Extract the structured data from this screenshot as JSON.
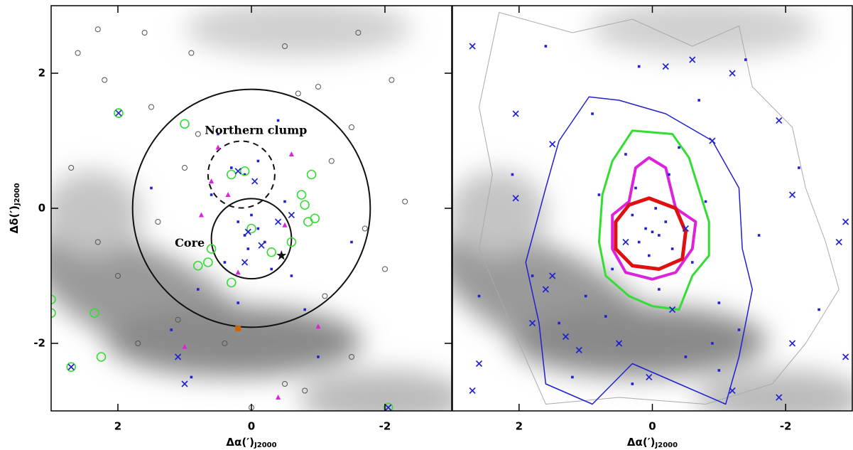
{
  "chart_data": [
    {
      "type": "scatter",
      "xlim": [
        3,
        -3
      ],
      "ylim": [
        -3,
        3
      ],
      "xticks": [
        2,
        0,
        -2
      ],
      "yticks": [
        -2,
        0,
        2
      ],
      "xlabel": "Δα(′)",
      "xlabel_sub": "J2000",
      "ylabel": "Δδ(′)",
      "ylabel_sub": "J2000",
      "annotations": [
        "Northern clump",
        "Core"
      ],
      "circles": [
        {
          "cx": 0,
          "cy": 0,
          "r": 1.78,
          "dashed": false,
          "color": "#111111"
        },
        {
          "cx": 0.15,
          "cy": 0.5,
          "r": 0.5,
          "dashed": true,
          "color": "#111111"
        },
        {
          "cx": 0.0,
          "cy": -0.45,
          "r": 0.6,
          "dashed": false,
          "color": "#111111"
        }
      ],
      "series": [
        {
          "marker": "circle",
          "color": "#555555",
          "x": [
            2.6,
            1.6,
            2.2,
            1.5,
            0.9,
            -0.5,
            -1.6,
            -2.1,
            -1.5,
            -2.3,
            -1.7,
            -2.0,
            2.7,
            2.3,
            1.4,
            1.0,
            -1.1,
            -1.5,
            -0.5,
            0.4,
            1.1,
            2.0,
            0.8,
            -0.7,
            -0.8,
            1.7,
            2.3,
            0.0,
            -1.2,
            -1.0
          ],
          "y": [
            2.3,
            2.6,
            1.9,
            1.5,
            2.3,
            2.4,
            2.6,
            1.9,
            1.2,
            0.1,
            -0.3,
            -0.9,
            0.6,
            -0.5,
            -0.2,
            0.6,
            -1.3,
            -2.2,
            -2.6,
            -2.0,
            -1.65,
            -1.0,
            1.1,
            1.7,
            -2.7,
            -2.0,
            2.65,
            -2.95,
            0.7,
            1.8
          ]
        },
        {
          "marker": "dot",
          "color": "#2020d0",
          "x": [
            0.1,
            -0.1,
            0.05,
            0.2,
            -0.2,
            0,
            0.3,
            0.1,
            -0.1,
            0.4,
            -0.3,
            0.6,
            -0.5,
            0.8,
            -0.8,
            1.2,
            -1.5,
            0.5,
            -0.4,
            1.5,
            0.2,
            -1.0,
            0.9,
            -0.6
          ],
          "y": [
            -0.4,
            -0.3,
            -0.6,
            -0.2,
            -0.5,
            -0.1,
            0.6,
            0.5,
            0.7,
            -0.8,
            -0.9,
            0.2,
            0.1,
            -1.2,
            -1.5,
            -1.8,
            -0.5,
            1.1,
            1.3,
            0.3,
            -1.4,
            -2.2,
            -2.5,
            -1.0
          ]
        },
        {
          "marker": "circle-big",
          "color": "#33dd33",
          "x": [
            1.99,
            1.0,
            3.0,
            3.0,
            2.35,
            2.25,
            2.7,
            -2.05,
            -0.75,
            -0.8,
            -0.85,
            0.3,
            0.1,
            -0.6,
            0.6,
            -0.3,
            0.65,
            -0.9,
            0.3,
            -0.95,
            0.8,
            0.0
          ],
          "y": [
            1.41,
            1.25,
            -1.35,
            -1.55,
            -1.55,
            -2.2,
            -2.35,
            -2.95,
            0.2,
            0.05,
            -0.2,
            0.5,
            0.55,
            -0.5,
            -0.6,
            -0.65,
            -0.8,
            0.5,
            -1.1,
            -0.15,
            -0.85,
            -0.3
          ]
        },
        {
          "marker": "cross",
          "color": "#2020d0",
          "x": [
            0.05,
            -0.15,
            0.2,
            -0.05,
            -0.4,
            0.1,
            1.99,
            2.7,
            1.0,
            1.1,
            -0.6,
            -2.05
          ],
          "y": [
            -0.35,
            -0.55,
            0.55,
            0.4,
            -0.2,
            -0.8,
            1.41,
            -2.35,
            -2.6,
            -2.2,
            -0.1,
            -2.95
          ]
        },
        {
          "marker": "triangle",
          "color": "#dd22dd",
          "x": [
            0.35,
            -0.6,
            0.5,
            0.2,
            -0.4,
            1.0,
            -0.5,
            0.75,
            0.6,
            -1.0
          ],
          "y": [
            0.2,
            0.8,
            0.9,
            -0.95,
            -2.8,
            -2.05,
            -0.25,
            -0.1,
            0.4,
            -1.75
          ]
        },
        {
          "marker": "square",
          "color": "#cc6600",
          "x": [
            0.2
          ],
          "y": [
            -1.78
          ]
        },
        {
          "marker": "star",
          "color": "#111111",
          "x": [
            -0.45
          ],
          "y": [
            -0.7
          ]
        }
      ]
    },
    {
      "type": "contour",
      "xlim": [
        3,
        -3
      ],
      "ylim": [
        -3,
        3
      ],
      "xticks": [
        2,
        0,
        -2
      ],
      "xlabel": "Δα(′)",
      "xlabel_sub": "J2000",
      "contours": [
        {
          "color": "#aaaaaa",
          "width": 1,
          "x": [
            2.3,
            1.2,
            0.3,
            -0.6,
            -1.3,
            -1.5,
            -2.1,
            -2.3,
            -2.6,
            -2.8,
            -2.3,
            -1.8,
            -0.8,
            0.5,
            1.6,
            2.0,
            2.6,
            2.4,
            2.6
          ],
          "y": [
            2.9,
            2.6,
            2.8,
            2.4,
            2.7,
            1.8,
            1.2,
            0.3,
            -0.5,
            -1.2,
            -2.0,
            -2.6,
            -2.9,
            -2.8,
            -2.9,
            -2.0,
            -0.6,
            0.5,
            1.5
          ]
        },
        {
          "color": "#2020d0",
          "width": 1.5,
          "x": [
            0.95,
            0.5,
            -0.2,
            -0.9,
            -1.3,
            -1.35,
            -1.5,
            -1.3,
            -1.1,
            -0.4,
            0.3,
            0.9,
            1.6,
            1.7,
            1.9,
            1.6,
            1.4
          ],
          "y": [
            1.65,
            1.6,
            1.4,
            1.0,
            0.3,
            -0.6,
            -1.2,
            -2.2,
            -2.9,
            -2.6,
            -2.3,
            -2.9,
            -2.6,
            -1.7,
            -0.8,
            0.3,
            1.0
          ]
        },
        {
          "color": "#33dd33",
          "width": 3,
          "x": [
            0.3,
            -0.3,
            -0.55,
            -0.85,
            -0.85,
            -0.6,
            -0.4,
            0.0,
            0.35,
            0.7,
            0.8,
            0.75,
            0.6
          ],
          "y": [
            1.15,
            1.1,
            0.75,
            -0.2,
            -0.7,
            -1.0,
            -1.5,
            -1.45,
            -1.3,
            -1.0,
            -0.5,
            0.2,
            0.7
          ]
        },
        {
          "color": "#dd22dd",
          "width": 4,
          "x": [
            0.05,
            -0.2,
            -0.35,
            -0.65,
            -0.6,
            -0.35,
            0.0,
            0.4,
            0.6,
            0.6,
            0.35,
            0.25
          ],
          "y": [
            0.75,
            0.6,
            0.0,
            -0.2,
            -0.6,
            -0.95,
            -1.05,
            -0.95,
            -0.6,
            -0.1,
            0.1,
            0.6
          ]
        },
        {
          "color": "#e01010",
          "width": 5,
          "x": [
            0.05,
            -0.35,
            -0.5,
            -0.45,
            -0.1,
            0.3,
            0.55,
            0.55,
            0.35
          ],
          "y": [
            0.15,
            0.0,
            -0.35,
            -0.75,
            -0.9,
            -0.85,
            -0.6,
            -0.2,
            0.05
          ]
        }
      ],
      "series": [
        {
          "marker": "dot",
          "color": "#2020d0",
          "x": [
            0,
            0.1,
            -0.1,
            0.2,
            -0.2,
            0.3,
            -0.3,
            0.05,
            -0.05,
            0.25,
            -0.25,
            0.4,
            -0.4,
            0.6,
            -0.6,
            0.8,
            -0.8,
            1.0,
            -1.0,
            1.4,
            -1.3,
            0.5,
            -0.5,
            1.8,
            -1.6,
            2.1,
            -2.2,
            0.9,
            -0.7,
            0.2,
            1.6,
            -1.4,
            2.6,
            -2.5,
            0.3,
            -1.0,
            1.2,
            -0.1,
            0.7,
            -0.9
          ],
          "y": [
            -0.35,
            -0.3,
            -0.4,
            -0.5,
            -0.2,
            -0.1,
            -0.6,
            -0.7,
            0.0,
            0.3,
            0.5,
            0.8,
            0.9,
            -0.9,
            -0.8,
            0.2,
            0.1,
            -1.3,
            -1.4,
            -1.7,
            -1.8,
            -2.0,
            -2.2,
            -1.0,
            -0.4,
            0.5,
            0.6,
            1.4,
            1.6,
            2.1,
            2.4,
            2.2,
            -1.3,
            -1.5,
            -2.6,
            -2.4,
            -2.5,
            -1.2,
            -1.6,
            -2.0
          ]
        },
        {
          "marker": "cross",
          "color": "#2020d0",
          "x": [
            2.7,
            1.5,
            2.05,
            2.05,
            1.5,
            1.6,
            1.3,
            1.1,
            0.5,
            -0.2,
            -0.6,
            -1.2,
            -0.9,
            -1.9,
            -2.1,
            -2.9,
            -2.8,
            -2.1,
            -1.9,
            -2.9,
            2.6,
            2.7,
            0.05,
            -0.5,
            0.4,
            1.8,
            -0.3,
            -1.2
          ],
          "y": [
            2.4,
            0.95,
            1.4,
            0.15,
            -1.0,
            -1.2,
            -1.9,
            -2.1,
            -2.0,
            2.1,
            2.2,
            2.0,
            1.0,
            1.3,
            0.2,
            -0.2,
            -0.5,
            -2.0,
            -2.8,
            -2.2,
            -2.3,
            -2.7,
            -2.5,
            -0.3,
            -0.5,
            -1.7,
            -1.5,
            -2.7
          ]
        }
      ]
    }
  ]
}
